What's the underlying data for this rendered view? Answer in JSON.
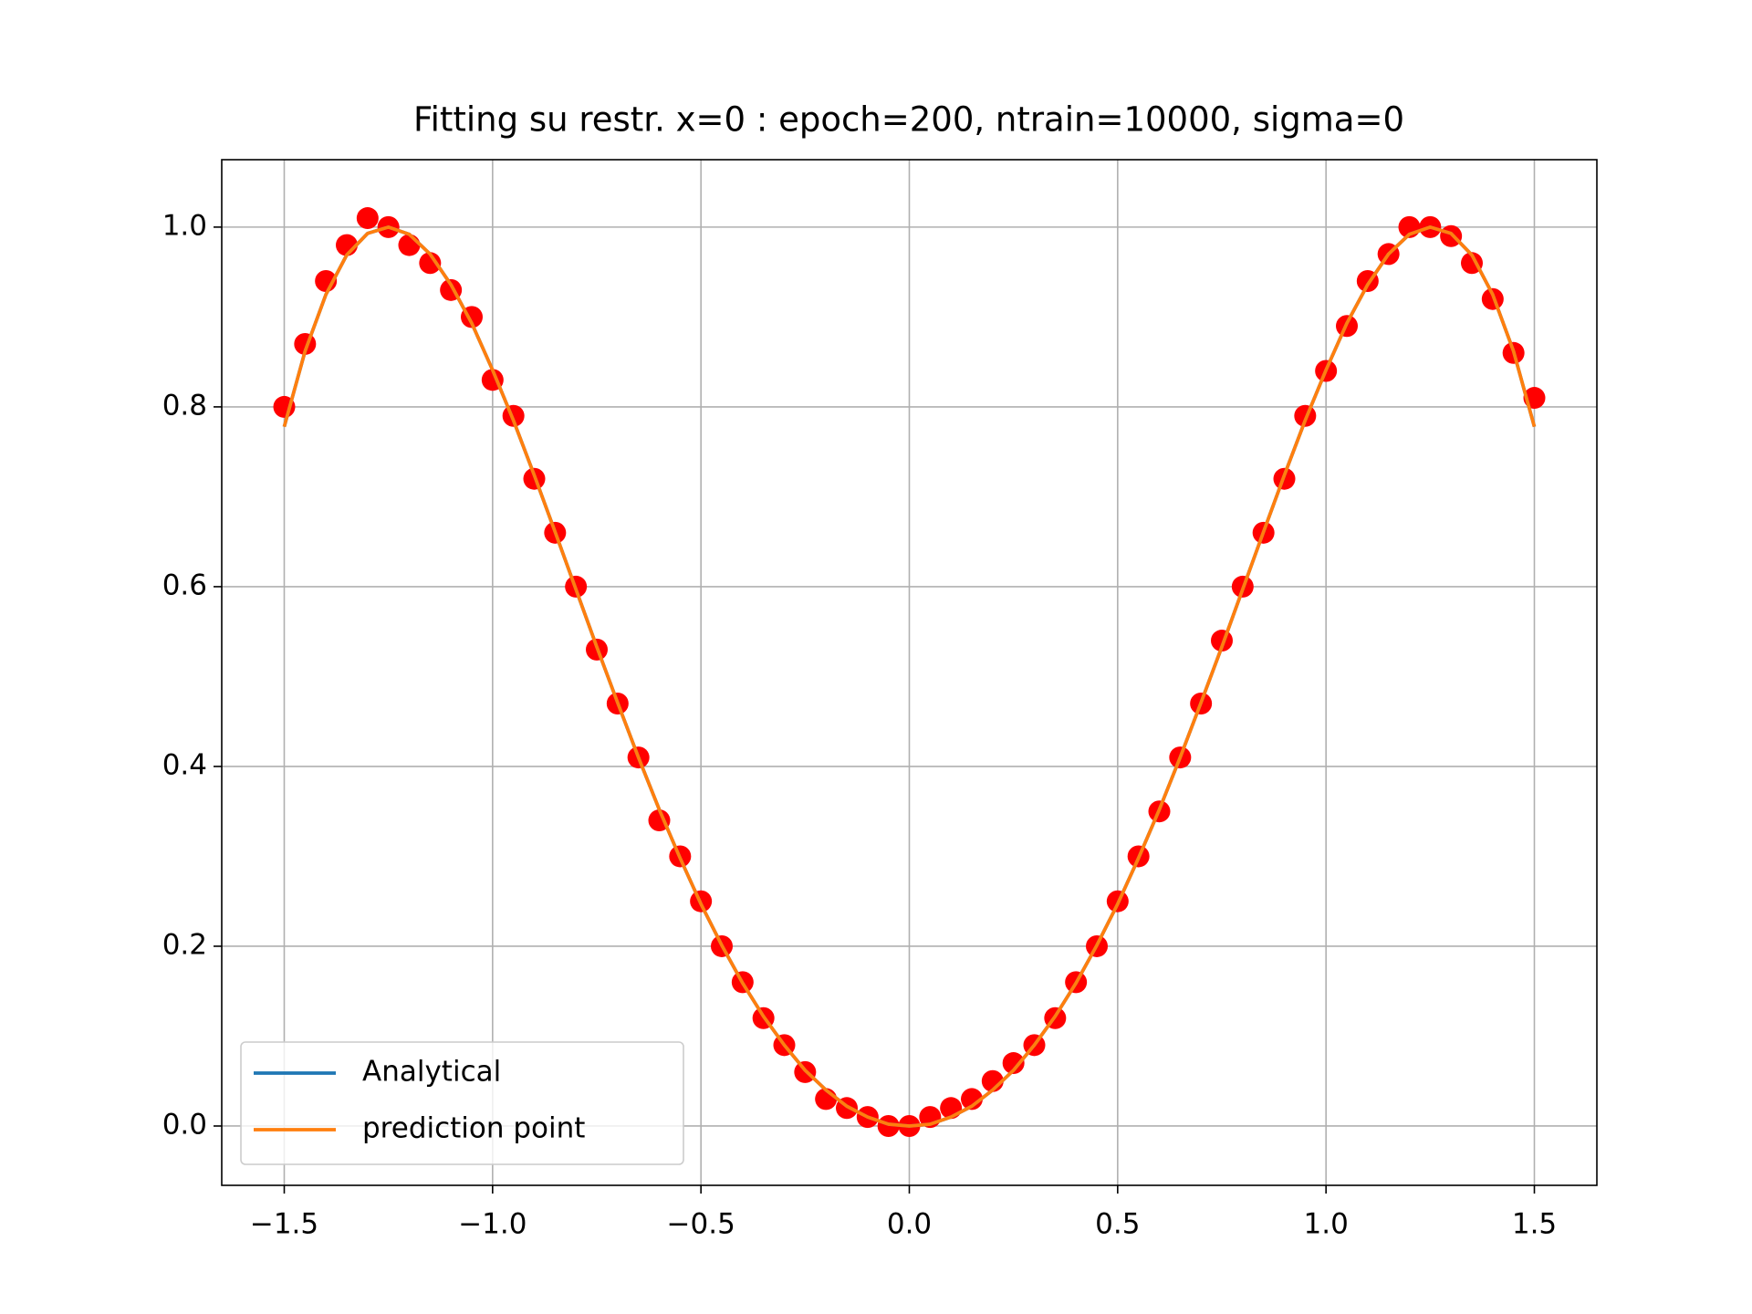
{
  "chart_data": {
    "type": "line",
    "title": "Fitting su restr. x=0 : epoch=200, ntrain=10000, sigma=0",
    "x": [
      -1.5,
      -1.45,
      -1.4,
      -1.35,
      -1.3,
      -1.25,
      -1.2,
      -1.15,
      -1.1,
      -1.05,
      -1.0,
      -0.95,
      -0.9,
      -0.85,
      -0.8,
      -0.75,
      -0.7,
      -0.65,
      -0.6,
      -0.55,
      -0.5,
      -0.45,
      -0.4,
      -0.35,
      -0.3,
      -0.25,
      -0.2,
      -0.15,
      -0.1,
      -0.05,
      0,
      0.05,
      0.1,
      0.15,
      0.2,
      0.25,
      0.3,
      0.35,
      0.4,
      0.45,
      0.5,
      0.55,
      0.6,
      0.65,
      0.7,
      0.75,
      0.8,
      0.85,
      0.9,
      0.95,
      1.0,
      1.05,
      1.1,
      1.15,
      1.2,
      1.25,
      1.3,
      1.35,
      1.4,
      1.45,
      1.5
    ],
    "points": {
      "color": "#ff0000",
      "values": [
        0.8,
        0.87,
        0.94,
        0.98,
        1.01,
        1.0,
        0.98,
        0.96,
        0.93,
        0.9,
        0.83,
        0.79,
        0.72,
        0.66,
        0.6,
        0.53,
        0.47,
        0.41,
        0.34,
        0.3,
        0.25,
        0.2,
        0.16,
        0.12,
        0.09,
        0.06,
        0.03,
        0.02,
        0.01,
        0.0,
        0.0,
        0.01,
        0.02,
        0.03,
        0.05,
        0.07,
        0.09,
        0.12,
        0.16,
        0.2,
        0.25,
        0.3,
        0.35,
        0.41,
        0.47,
        0.54,
        0.6,
        0.66,
        0.72,
        0.79,
        0.84,
        0.89,
        0.94,
        0.97,
        1.0,
        1.0,
        0.99,
        0.96,
        0.92,
        0.86,
        0.81
      ]
    },
    "series": [
      {
        "name": "Analytical",
        "color": "#1f77b4",
        "values": [
          0.778,
          0.862,
          0.925,
          0.969,
          0.993,
          1.0,
          0.992,
          0.97,
          0.936,
          0.893,
          0.841,
          0.785,
          0.724,
          0.661,
          0.597,
          0.533,
          0.471,
          0.41,
          0.352,
          0.298,
          0.247,
          0.201,
          0.159,
          0.122,
          0.09,
          0.062,
          0.04,
          0.022,
          0.01,
          0.002,
          0,
          0.002,
          0.01,
          0.022,
          0.04,
          0.062,
          0.09,
          0.122,
          0.159,
          0.201,
          0.247,
          0.298,
          0.352,
          0.41,
          0.471,
          0.533,
          0.597,
          0.661,
          0.724,
          0.785,
          0.841,
          0.893,
          0.936,
          0.97,
          0.992,
          1.0,
          0.993,
          0.969,
          0.925,
          0.862,
          0.778
        ]
      },
      {
        "name": "prediction point",
        "color": "#ff7f0e",
        "values": [
          0.778,
          0.862,
          0.925,
          0.969,
          0.993,
          1.0,
          0.992,
          0.97,
          0.936,
          0.893,
          0.841,
          0.785,
          0.724,
          0.661,
          0.597,
          0.533,
          0.471,
          0.41,
          0.352,
          0.298,
          0.247,
          0.201,
          0.159,
          0.122,
          0.09,
          0.062,
          0.04,
          0.022,
          0.01,
          0.002,
          0,
          0.002,
          0.01,
          0.022,
          0.04,
          0.062,
          0.09,
          0.122,
          0.159,
          0.201,
          0.247,
          0.298,
          0.352,
          0.41,
          0.471,
          0.533,
          0.597,
          0.661,
          0.724,
          0.785,
          0.841,
          0.893,
          0.936,
          0.97,
          0.992,
          1.0,
          0.993,
          0.969,
          0.925,
          0.862,
          0.778
        ]
      }
    ],
    "xlim": [
      -1.65,
      1.65
    ],
    "xticks": [
      {
        "value": -1.5,
        "label": "−1.5"
      },
      {
        "value": -1.0,
        "label": "−1.0"
      },
      {
        "value": -0.5,
        "label": "−0.5"
      },
      {
        "value": 0,
        "label": "0.0"
      },
      {
        "value": 0.5,
        "label": "0.5"
      },
      {
        "value": 1.0,
        "label": "1.0"
      },
      {
        "value": 1.5,
        "label": "1.5"
      }
    ],
    "ylim": [
      -0.066,
      1.075
    ],
    "yticks": [
      {
        "value": 0,
        "label": "0.0"
      },
      0.2,
      0.4,
      0.6,
      0.8,
      {
        "value": 1.0,
        "label": "1.0"
      }
    ],
    "grid": true,
    "legend": "lower left"
  }
}
